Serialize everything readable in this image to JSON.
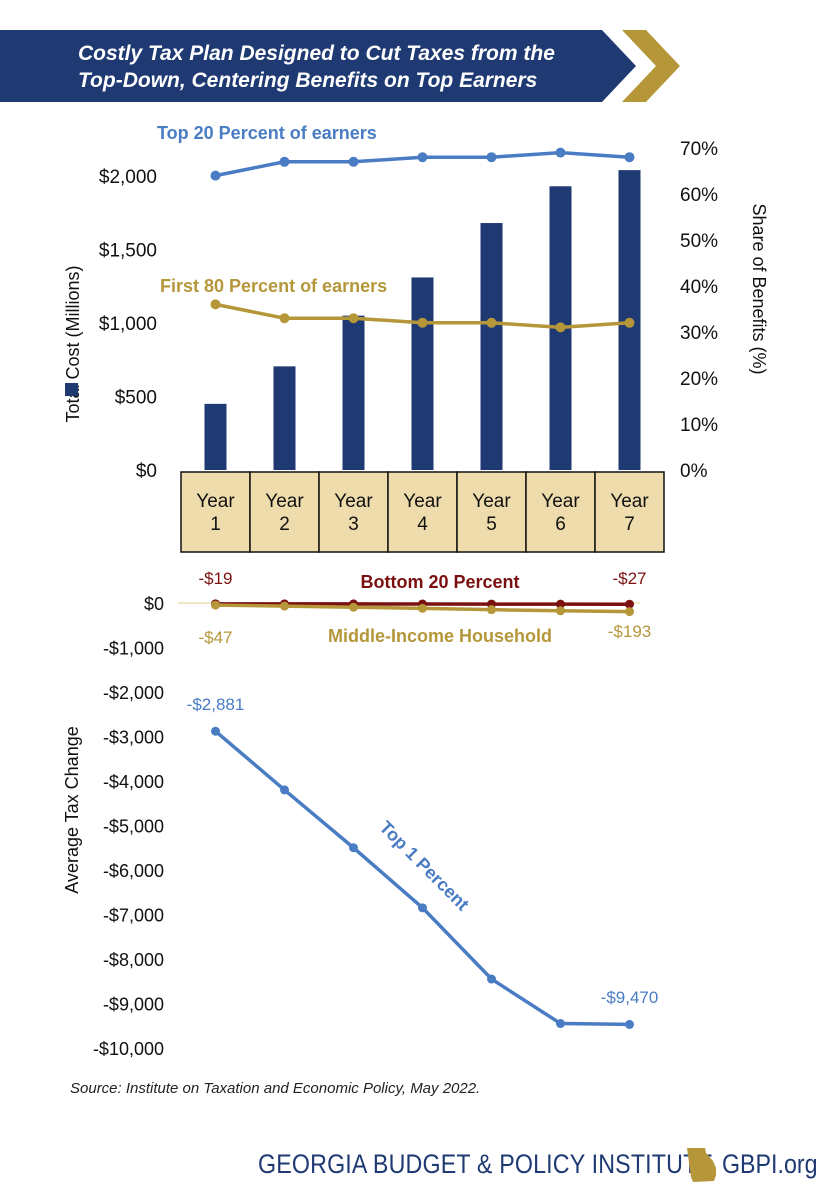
{
  "banner": {
    "title_line1": "Costly Tax Plan Designed to Cut Taxes from the",
    "title_line2": "Top-Down, Centering Benefits on Top Earners"
  },
  "colors": {
    "navy": "#1f3a73",
    "gold": "#b5973a",
    "blue": "#4a7cc4",
    "maroon": "#7a1010",
    "tan": "#eedcad"
  },
  "chart_data": [
    {
      "type": "bar",
      "title": "",
      "categories": [
        "Year\n1",
        "Year\n2",
        "Year\n3",
        "Year\n4",
        "Year\n5",
        "Year\n6",
        "Year\n7"
      ],
      "category_lines": [
        [
          "Year",
          "1"
        ],
        [
          "Year",
          "2"
        ],
        [
          "Year",
          "3"
        ],
        [
          "Year",
          "4"
        ],
        [
          "Year",
          "5"
        ],
        [
          "Year",
          "6"
        ],
        [
          "Year",
          "7"
        ]
      ],
      "ylabel": "Total Cost (Millions)",
      "ylim": [
        0,
        2000
      ],
      "y_ticks": [
        "$0",
        "$500",
        "$1,000",
        "$1,500",
        "$2,000"
      ],
      "y_tick_values": [
        0,
        500,
        1000,
        1500,
        2000
      ],
      "values": [
        450,
        705,
        1050,
        1310,
        1680,
        1930,
        2040
      ],
      "y2label": "Share of Benefits (%)",
      "y2lim": [
        0,
        70
      ],
      "y2_ticks": [
        "0%",
        "10%",
        "20%",
        "30%",
        "40%",
        "50%",
        "60%",
        "70%"
      ],
      "y2_tick_values": [
        0,
        10,
        20,
        30,
        40,
        50,
        60,
        70
      ],
      "line_series": [
        {
          "name": "Top 20 Percent of earners",
          "values": [
            64,
            67,
            67,
            68,
            68,
            69,
            68
          ]
        },
        {
          "name": "First 80 Percent of earners",
          "values": [
            36,
            33,
            33,
            32,
            32,
            31,
            32
          ]
        }
      ]
    },
    {
      "type": "line",
      "ylabel": "Average Tax Change",
      "ylim": [
        -10000,
        0
      ],
      "y_ticks": [
        "$0",
        "-$1,000",
        "-$2,000",
        "-$3,000",
        "-$4,000",
        "-$5,000",
        "-$6,000",
        "-$7,000",
        "-$8,000",
        "-$9,000",
        "-$10,000"
      ],
      "y_tick_values": [
        0,
        -1000,
        -2000,
        -3000,
        -4000,
        -5000,
        -6000,
        -7000,
        -8000,
        -9000,
        -10000
      ],
      "series": [
        {
          "name": "Bottom 20 Percent",
          "values": [
            -19,
            -20,
            -21,
            -22,
            -24,
            -26,
            -27
          ],
          "label_first": "-$19",
          "label_last": "-$27"
        },
        {
          "name": "Middle-Income Household",
          "values": [
            -47,
            -70,
            -95,
            -120,
            -150,
            -175,
            -193
          ],
          "label_first": "-$47",
          "label_last": "-$193"
        },
        {
          "name": "Top 1 Percent",
          "values": [
            -2881,
            -4200,
            -5500,
            -6850,
            -8450,
            -9450,
            -9470
          ],
          "label_first": "-$2,881",
          "label_last": "-$9,470"
        }
      ]
    }
  ],
  "footer": {
    "source": "Source: Institute on Taxation and Economic Policy, May 2022.",
    "org": "GEORGIA BUDGET & POLICY INSTITUTE",
    "website": "GBPI.org"
  }
}
